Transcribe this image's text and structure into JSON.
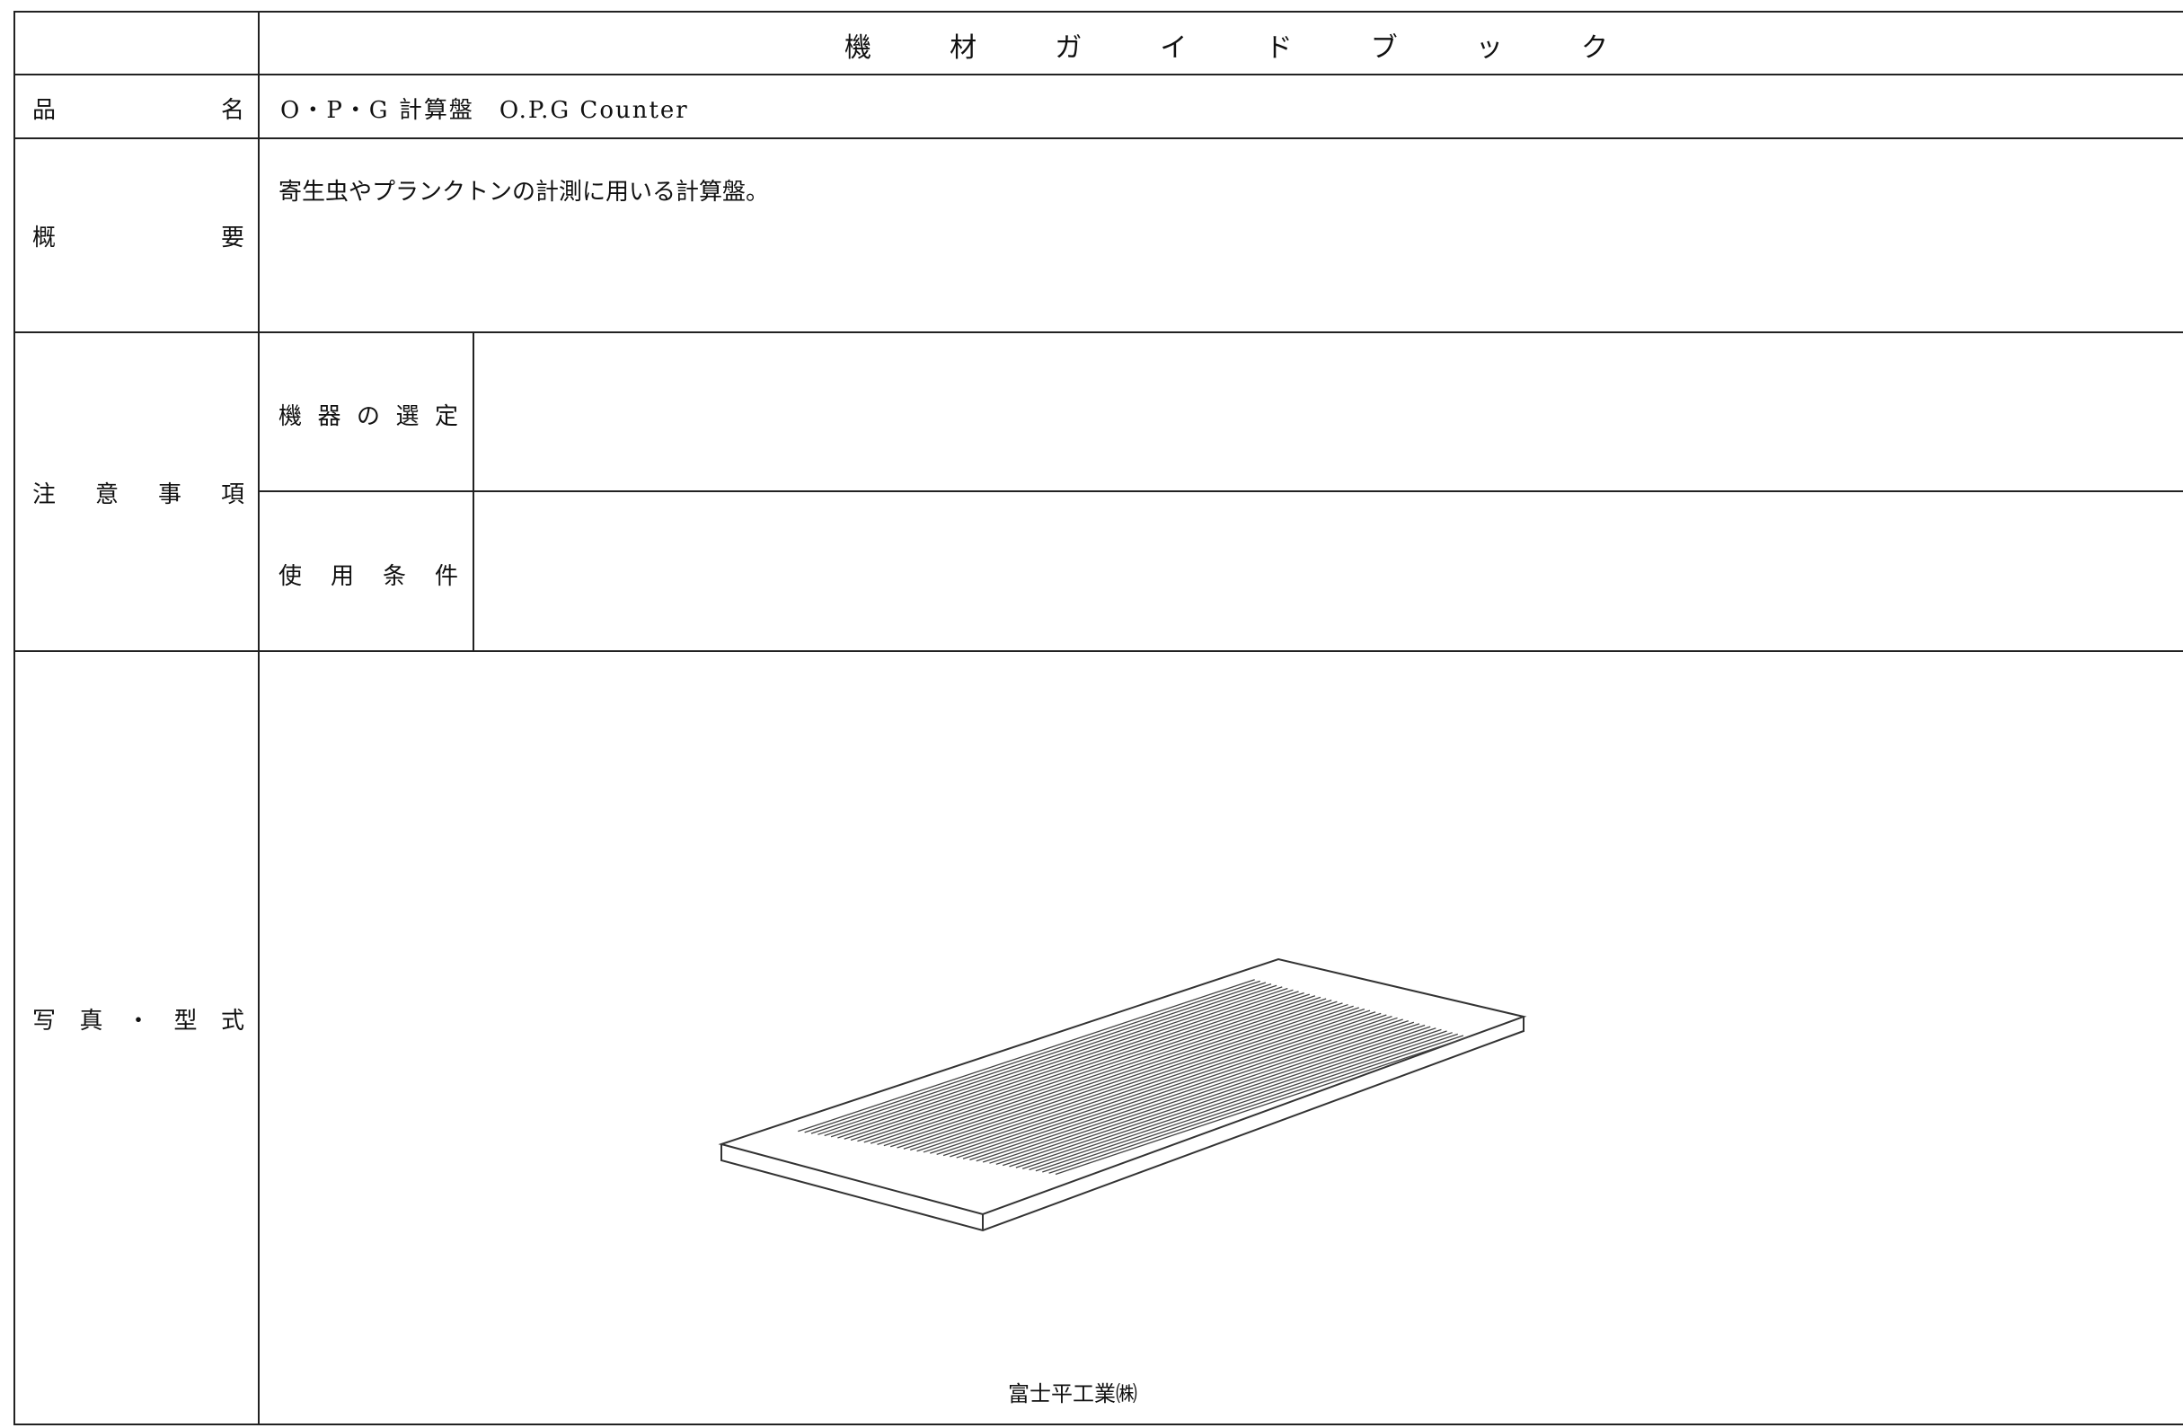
{
  "header": {
    "title": "機材ガイドブック"
  },
  "rows": {
    "name": {
      "label": "品名",
      "value": "O・P・G 計算盤　O.P.G Counter"
    },
    "summary": {
      "label": "概要",
      "value": "寄生虫やプランクトンの計測に用いる計算盤。"
    },
    "notes": {
      "label": "注意事項",
      "selection": {
        "label": "機器の選定"
      },
      "conditions": {
        "label": "使用条件"
      }
    },
    "photo": {
      "label": "写真・型式",
      "caption": "富士平工業㈱"
    }
  }
}
